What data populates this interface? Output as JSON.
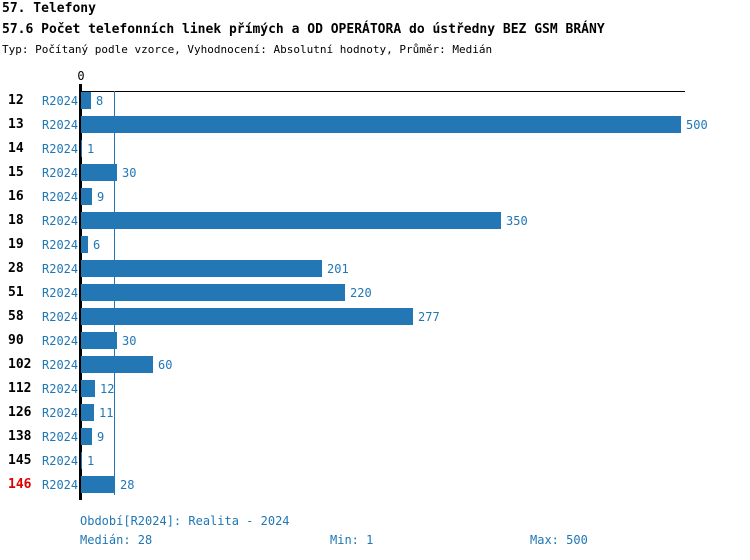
{
  "header": {
    "title": "57. Telefony",
    "subtitle": "57.6 Počet telefonních linek přímých a OD OPERÁTORA do ústředny BEZ GSM BRÁNY",
    "meta": "Typ: Počítaný podle vzorce, Vyhodnocení: Absolutní hodnoty, Průměr: Medián"
  },
  "axis": {
    "zero_label": "0"
  },
  "colors": {
    "bar": "#2277b4",
    "blue_text": "#1f77b4",
    "highlight_red": "#e00000",
    "axis": "#000000"
  },
  "chart_data": {
    "type": "bar",
    "orientation": "horizontal",
    "title": "57.6 Počet telefonních linek přímých a OD OPERÁTORA do ústředny BEZ GSM BRÁNY",
    "series_name": "R2024",
    "categories": [
      "12",
      "13",
      "14",
      "15",
      "16",
      "18",
      "19",
      "28",
      "51",
      "58",
      "90",
      "102",
      "112",
      "126",
      "138",
      "145",
      "146"
    ],
    "values": [
      8,
      500,
      1,
      30,
      9,
      350,
      6,
      201,
      220,
      277,
      30,
      60,
      12,
      11,
      9,
      1,
      28
    ],
    "highlighted_categories": [
      "146"
    ],
    "xlim": [
      0,
      500
    ],
    "median_line_value": 28,
    "grid": false,
    "legend": false
  },
  "footer": {
    "period": "Období[R2024]: Realita - 2024",
    "median": "Medián: 28",
    "min": "Min: 1",
    "max": "Max: 500"
  }
}
